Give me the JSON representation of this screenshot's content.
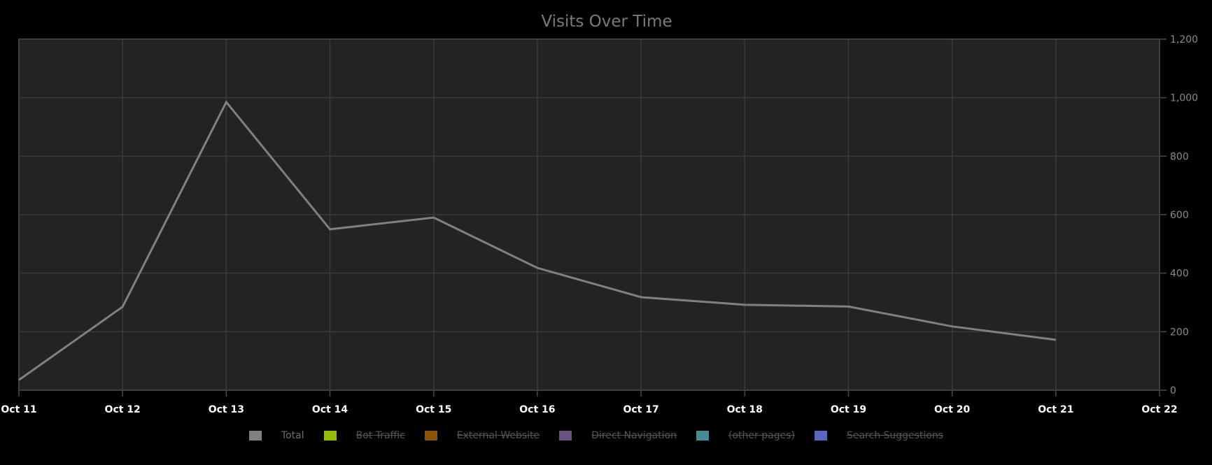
{
  "chart_data": {
    "type": "line",
    "title": "Visits Over Time",
    "xlabel": "",
    "ylabel": "",
    "x_ticks": [
      "Oct 11",
      "Oct 12",
      "Oct 13",
      "Oct 14",
      "Oct 15",
      "Oct 16",
      "Oct 17",
      "Oct 18",
      "Oct 19",
      "Oct 20",
      "Oct 21",
      "Oct 22"
    ],
    "categories": [
      "Oct 11",
      "Oct 12",
      "Oct 13",
      "Oct 14",
      "Oct 15",
      "Oct 16",
      "Oct 17",
      "Oct 18",
      "Oct 19",
      "Oct 20",
      "Oct 21"
    ],
    "ylim": [
      0,
      1200
    ],
    "y_ticks": [
      0,
      200,
      400,
      600,
      800,
      1000,
      1200
    ],
    "y_tick_labels": [
      "0",
      "200",
      "400",
      "600",
      "800",
      "1,000",
      "1,200"
    ],
    "y_axis_position": "right",
    "grid": true,
    "legend_position": "bottom",
    "series": [
      {
        "name": "Total",
        "color": "#808080",
        "visible": true,
        "values": [
          35,
          285,
          985,
          550,
          590,
          418,
          318,
          292,
          286,
          218,
          172
        ]
      },
      {
        "name": "Bot Traffic",
        "color": "#97bb0b",
        "visible": false,
        "values": []
      },
      {
        "name": "External Website",
        "color": "#8c5408",
        "visible": false,
        "values": []
      },
      {
        "name": "Direct Navigation",
        "color": "#6b5083",
        "visible": false,
        "values": []
      },
      {
        "name": "(other pages)",
        "color": "#468b91",
        "visible": false,
        "values": []
      },
      {
        "name": "Search Suggestions",
        "color": "#5a67bd",
        "visible": false,
        "values": []
      }
    ]
  },
  "colors": {
    "page_background": "#000000",
    "plot_background": "#232323",
    "grid": "#3a3a3a",
    "axis": "#4a4a4a",
    "line": "#808080"
  }
}
